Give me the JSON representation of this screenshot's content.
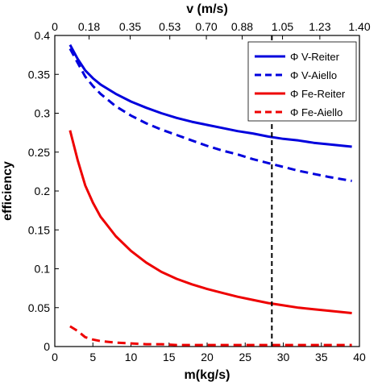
{
  "chart_data": {
    "type": "line",
    "xlabel": "m(kg/s)",
    "ylabel": "efficiency",
    "x2label": "v (m/s)",
    "xlim": [
      0,
      40
    ],
    "ylim": [
      0,
      0.4
    ],
    "xticks": [
      0,
      5,
      10,
      15,
      20,
      25,
      30,
      35,
      40
    ],
    "yticks": [
      0,
      0.05,
      0.1,
      0.15,
      0.2,
      0.25,
      0.3,
      0.35,
      0.4
    ],
    "xtick_labels": [
      "0",
      "5",
      "10",
      "15",
      "20",
      "25",
      "30",
      "35",
      "40"
    ],
    "ytick_labels": [
      "0",
      "0.05",
      "0.1",
      "0.15",
      "0.2",
      "0.25",
      "0.3",
      "0.35",
      "0.4"
    ],
    "x2ticks": [
      {
        "label": "0",
        "x": 0
      },
      {
        "label": "0.18",
        "x": 4.5
      },
      {
        "label": "0.35",
        "x": 9.9
      },
      {
        "label": "0.53",
        "x": 15.1
      },
      {
        "label": "0.70",
        "x": 19.9
      },
      {
        "label": "0.88",
        "x": 24.6
      },
      {
        "label": "1.05",
        "x": 29.9
      },
      {
        "label": "1.23",
        "x": 34.8
      },
      {
        "label": "1.40",
        "x": 40
      }
    ],
    "vline_x": 28.5,
    "grid": false,
    "legend": "top-right",
    "series": [
      {
        "name": "Φ V-Reiter",
        "color": "#0000dd",
        "dash": "solid",
        "x": [
          2,
          3,
          4,
          5,
          6,
          8,
          10,
          12,
          14,
          16,
          18,
          20,
          22,
          24,
          26,
          28,
          30,
          32,
          34,
          36,
          39
        ],
        "y": [
          0.388,
          0.37,
          0.355,
          0.345,
          0.337,
          0.325,
          0.315,
          0.307,
          0.3,
          0.294,
          0.289,
          0.285,
          0.281,
          0.277,
          0.274,
          0.27,
          0.267,
          0.265,
          0.262,
          0.26,
          0.257
        ]
      },
      {
        "name": "Φ V-Aiello",
        "color": "#0000dd",
        "dash": "dashed",
        "x": [
          2,
          3,
          4,
          5,
          6,
          8,
          10,
          12,
          14,
          16,
          18,
          20,
          22,
          24,
          26,
          28,
          30,
          32,
          34,
          36,
          39
        ],
        "y": [
          0.383,
          0.365,
          0.347,
          0.335,
          0.325,
          0.309,
          0.297,
          0.287,
          0.279,
          0.272,
          0.265,
          0.258,
          0.252,
          0.247,
          0.241,
          0.236,
          0.231,
          0.226,
          0.222,
          0.218,
          0.213
        ]
      },
      {
        "name": "Φ Fe-Reiter",
        "color": "#ee0000",
        "dash": "solid",
        "x": [
          2,
          3,
          4,
          5,
          6,
          8,
          10,
          12,
          14,
          16,
          18,
          20,
          22,
          24,
          26,
          28,
          30,
          32,
          34,
          36,
          39
        ],
        "y": [
          0.278,
          0.24,
          0.207,
          0.185,
          0.167,
          0.142,
          0.123,
          0.108,
          0.096,
          0.087,
          0.08,
          0.074,
          0.069,
          0.064,
          0.06,
          0.056,
          0.053,
          0.05,
          0.048,
          0.046,
          0.043
        ]
      },
      {
        "name": "Φ Fe-Aiello",
        "color": "#ee0000",
        "dash": "dashed",
        "x": [
          2,
          3,
          4,
          5,
          6,
          8,
          10,
          12,
          14,
          16,
          18,
          20,
          22,
          24,
          26,
          28,
          30,
          32,
          34,
          36,
          39
        ],
        "y": [
          0.026,
          0.02,
          0.012,
          0.009,
          0.007,
          0.005,
          0.004,
          0.003,
          0.003,
          0.002,
          0.002,
          0.002,
          0.002,
          0.002,
          0.002,
          0.002,
          0.002,
          0.002,
          0.002,
          0.002,
          0.002
        ]
      }
    ]
  }
}
